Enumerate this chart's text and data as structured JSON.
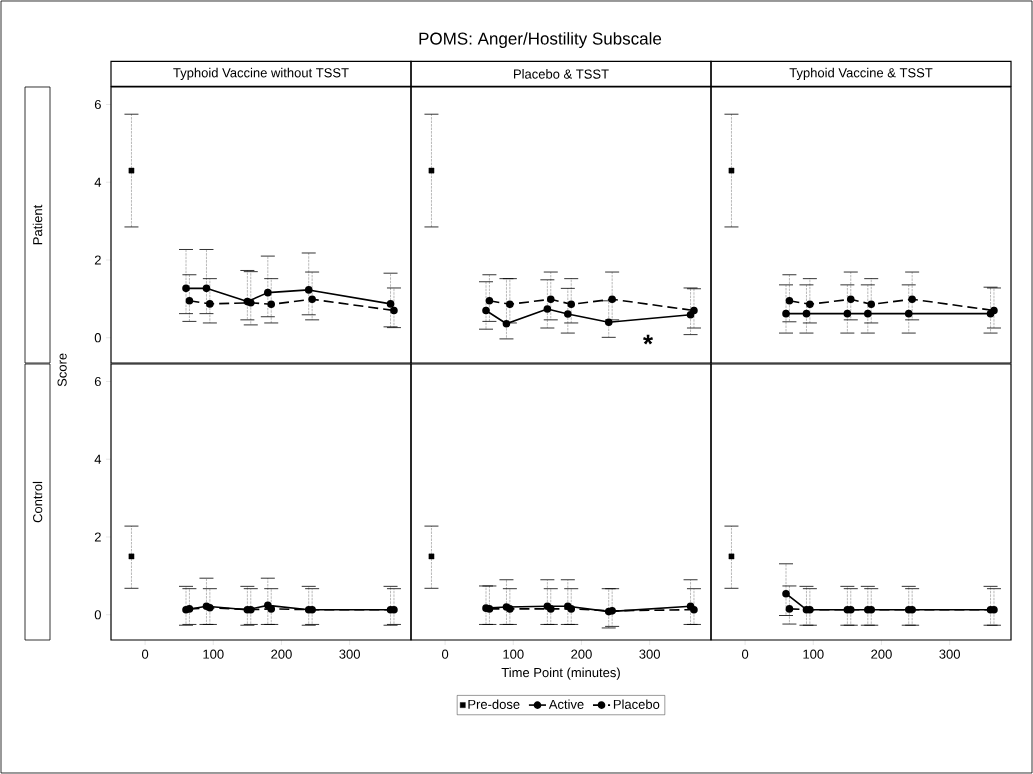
{
  "chart_data": [
    {
      "type": "line",
      "subtitle": "Typhoid Vaccine without TSST",
      "ylabel": "Score",
      "annotations": [
        "Patient"
      ],
      "xlim": [
        -50,
        390
      ],
      "ylim": [
        -0.65,
        6.45
      ],
      "xticks": [
        0,
        100,
        200,
        300
      ],
      "yticks": [
        0,
        2,
        4,
        6
      ],
      "tick_labels": "y",
      "series": [
        {
          "type": "scatter",
          "marker": "square",
          "color": "#000000",
          "x": [
            -20
          ],
          "values": [
            4.3
          ],
          "errors": [
            [
              2.85,
              5.75
            ]
          ]
        },
        {
          "type": "line",
          "marker": "circle",
          "line_style": "solid",
          "color": "#000000",
          "x": [
            60,
            90,
            150,
            180,
            240,
            360
          ],
          "values": [
            1.27,
            1.27,
            0.93,
            1.16,
            1.23,
            0.87
          ],
          "errors": [
            [
              0.62,
              2.27
            ],
            [
              0.62,
              2.27
            ],
            [
              0.46,
              1.73
            ],
            [
              0.54,
              2.1
            ],
            [
              0.59,
              2.18
            ],
            [
              0.28,
              1.66
            ]
          ]
        },
        {
          "type": "line",
          "marker": "circle",
          "line_style": "dashed",
          "color": "#000000",
          "x": [
            65,
            95,
            155,
            185,
            245,
            365
          ],
          "values": [
            0.95,
            0.87,
            0.9,
            0.86,
            0.99,
            0.7
          ],
          "errors": [
            [
              0.42,
              1.62
            ],
            [
              0.38,
              1.52
            ],
            [
              0.33,
              1.7
            ],
            [
              0.38,
              1.52
            ],
            [
              0.46,
              1.69
            ],
            [
              0.26,
              1.28
            ]
          ]
        }
      ]
    },
    {
      "type": "line",
      "title": "POMS: Anger/Hostility Subscale",
      "subtitle": "Placebo & TSST",
      "annotations": [
        "*"
      ],
      "xlim": [
        -50,
        390
      ],
      "ylim": [
        -0.65,
        6.45
      ],
      "xticks": [
        0,
        100,
        200,
        300
      ],
      "yticks": [
        0,
        2,
        4,
        6
      ],
      "tick_labels": false,
      "series": [
        {
          "type": "scatter",
          "marker": "square",
          "color": "#000000",
          "x": [
            -20
          ],
          "values": [
            4.3
          ],
          "errors": [
            [
              2.85,
              5.75
            ]
          ]
        },
        {
          "type": "line",
          "marker": "circle",
          "line_style": "solid",
          "color": "#000000",
          "x": [
            60,
            90,
            150,
            180,
            240,
            360
          ],
          "values": [
            0.7,
            0.36,
            0.74,
            0.61,
            0.4,
            0.59
          ],
          "errors": [
            [
              0.22,
              1.44
            ],
            [
              -0.03,
              1.52
            ],
            [
              0.25,
              1.49
            ],
            [
              0.12,
              1.27
            ],
            [
              0.01,
              0.95
            ],
            [
              0.08,
              1.28
            ]
          ]
        },
        {
          "type": "line",
          "marker": "circle",
          "line_style": "dashed",
          "color": "#000000",
          "x": [
            65,
            95,
            155,
            185,
            245,
            365
          ],
          "values": [
            0.95,
            0.86,
            0.99,
            0.86,
            0.99,
            0.7
          ],
          "errors": [
            [
              0.42,
              1.62
            ],
            [
              0.38,
              1.52
            ],
            [
              0.46,
              1.69
            ],
            [
              0.38,
              1.52
            ],
            [
              0.46,
              1.69
            ],
            [
              0.25,
              1.26
            ]
          ]
        }
      ]
    },
    {
      "type": "line",
      "subtitle": "Typhoid Vaccine & TSST",
      "xlim": [
        -50,
        390
      ],
      "ylim": [
        -0.65,
        6.45
      ],
      "xticks": [
        0,
        100,
        200,
        300
      ],
      "yticks": [
        0,
        2,
        4,
        6
      ],
      "tick_labels": false,
      "series": [
        {
          "type": "scatter",
          "marker": "square",
          "color": "#000000",
          "x": [
            -20
          ],
          "values": [
            4.3
          ],
          "errors": [
            [
              2.85,
              5.75
            ]
          ]
        },
        {
          "type": "line",
          "marker": "circle",
          "line_style": "solid",
          "color": "#000000",
          "x": [
            60,
            90,
            150,
            180,
            240,
            360
          ],
          "values": [
            0.62,
            0.62,
            0.62,
            0.62,
            0.62,
            0.62
          ],
          "errors": [
            [
              0.12,
              1.36
            ],
            [
              0.12,
              1.36
            ],
            [
              0.12,
              1.36
            ],
            [
              0.12,
              1.36
            ],
            [
              0.12,
              1.36
            ],
            [
              0.12,
              1.3
            ]
          ]
        },
        {
          "type": "line",
          "marker": "circle",
          "line_style": "dashed",
          "color": "#000000",
          "x": [
            65,
            95,
            155,
            185,
            245,
            365
          ],
          "values": [
            0.95,
            0.86,
            0.99,
            0.86,
            0.99,
            0.7
          ],
          "errors": [
            [
              0.41,
              1.62
            ],
            [
              0.38,
              1.52
            ],
            [
              0.46,
              1.69
            ],
            [
              0.38,
              1.52
            ],
            [
              0.46,
              1.69
            ],
            [
              0.25,
              1.28
            ]
          ]
        }
      ]
    },
    {
      "type": "line",
      "annotations": [
        "Control"
      ],
      "xlim": [
        -50,
        390
      ],
      "ylim": [
        -0.65,
        6.45
      ],
      "xticks": [
        0,
        100,
        200,
        300
      ],
      "yticks": [
        0,
        2,
        4,
        6
      ],
      "series": [
        {
          "type": "scatter",
          "marker": "square",
          "color": "#000000",
          "x": [
            -20
          ],
          "values": [
            1.5
          ],
          "errors": [
            [
              0.68,
              2.28
            ]
          ]
        },
        {
          "type": "line",
          "marker": "circle",
          "line_style": "solid",
          "color": "#000000",
          "x": [
            60,
            90,
            150,
            180,
            240,
            360
          ],
          "values": [
            0.13,
            0.22,
            0.13,
            0.24,
            0.13,
            0.13
          ],
          "errors": [
            [
              -0.27,
              0.73
            ],
            [
              -0.25,
              0.94
            ],
            [
              -0.27,
              0.73
            ],
            [
              -0.25,
              0.94
            ],
            [
              -0.27,
              0.73
            ],
            [
              -0.27,
              0.73
            ]
          ]
        },
        {
          "type": "line",
          "marker": "circle",
          "line_style": "dashed",
          "color": "#000000",
          "x": [
            65,
            95,
            155,
            185,
            245,
            365
          ],
          "values": [
            0.15,
            0.18,
            0.13,
            0.15,
            0.13,
            0.13
          ],
          "errors": [
            [
              -0.25,
              0.67
            ],
            [
              -0.25,
              0.67
            ],
            [
              -0.25,
              0.67
            ],
            [
              -0.25,
              0.67
            ],
            [
              -0.25,
              0.67
            ],
            [
              -0.25,
              0.67
            ]
          ]
        }
      ]
    },
    {
      "type": "line",
      "xlabel": "Time Point (minutes)",
      "legend": "bottom",
      "xlim": [
        -50,
        390
      ],
      "ylim": [
        -0.65,
        6.45
      ],
      "xticks": [
        0,
        100,
        200,
        300
      ],
      "yticks": [
        0,
        2,
        4,
        6
      ],
      "tick_labels": "x",
      "series": [
        {
          "type": "scatter",
          "name": "Pre-dose",
          "marker": "square",
          "color": "#000000",
          "x": [
            -20
          ],
          "values": [
            1.5
          ],
          "errors": [
            [
              0.68,
              2.28
            ]
          ]
        },
        {
          "type": "line",
          "name": "Active",
          "marker": "circle",
          "line_style": "solid",
          "color": "#000000",
          "x": [
            60,
            90,
            150,
            180,
            240,
            360
          ],
          "values": [
            0.17,
            0.2,
            0.22,
            0.22,
            0.08,
            0.22
          ],
          "errors": [
            [
              -0.25,
              0.74
            ],
            [
              -0.25,
              0.9
            ],
            [
              -0.25,
              0.9
            ],
            [
              -0.25,
              0.9
            ],
            [
              -0.34,
              0.67
            ],
            [
              -0.25,
              0.9
            ]
          ]
        },
        {
          "type": "line",
          "name": "Placebo",
          "marker": "circle",
          "line_style": "dashed",
          "color": "#000000",
          "x": [
            65,
            95,
            155,
            185,
            245,
            365
          ],
          "values": [
            0.15,
            0.15,
            0.15,
            0.15,
            0.1,
            0.13
          ],
          "errors": [
            [
              -0.25,
              0.74
            ],
            [
              -0.25,
              0.67
            ],
            [
              -0.25,
              0.67
            ],
            [
              -0.25,
              0.67
            ],
            [
              -0.3,
              0.67
            ],
            [
              -0.25,
              0.67
            ]
          ]
        }
      ]
    },
    {
      "type": "line",
      "xlim": [
        -50,
        390
      ],
      "ylim": [
        -0.65,
        6.45
      ],
      "xticks": [
        0,
        100,
        200,
        300
      ],
      "yticks": [
        0,
        2,
        4,
        6
      ],
      "tick_labels": "x",
      "series": [
        {
          "type": "scatter",
          "marker": "square",
          "color": "#000000",
          "x": [
            -20
          ],
          "values": [
            1.5
          ],
          "errors": [
            [
              0.68,
              2.28
            ]
          ]
        },
        {
          "type": "line",
          "marker": "circle",
          "line_style": "solid",
          "color": "#000000",
          "x": [
            60,
            90,
            150,
            180,
            240,
            360
          ],
          "values": [
            0.54,
            0.13,
            0.13,
            0.13,
            0.13,
            0.13
          ],
          "errors": [
            [
              -0.02,
              1.31
            ],
            [
              -0.27,
              0.73
            ],
            [
              -0.27,
              0.73
            ],
            [
              -0.27,
              0.73
            ],
            [
              -0.27,
              0.73
            ],
            [
              -0.27,
              0.73
            ]
          ]
        },
        {
          "type": "line",
          "marker": "circle",
          "line_style": "dashed",
          "color": "#000000",
          "x": [
            65,
            95,
            155,
            185,
            245,
            365
          ],
          "values": [
            0.15,
            0.13,
            0.13,
            0.13,
            0.13,
            0.13
          ],
          "errors": [
            [
              -0.24,
              0.74
            ],
            [
              -0.27,
              0.67
            ],
            [
              -0.27,
              0.67
            ],
            [
              -0.27,
              0.67
            ],
            [
              -0.27,
              0.67
            ],
            [
              -0.27,
              0.67
            ]
          ]
        }
      ]
    }
  ]
}
